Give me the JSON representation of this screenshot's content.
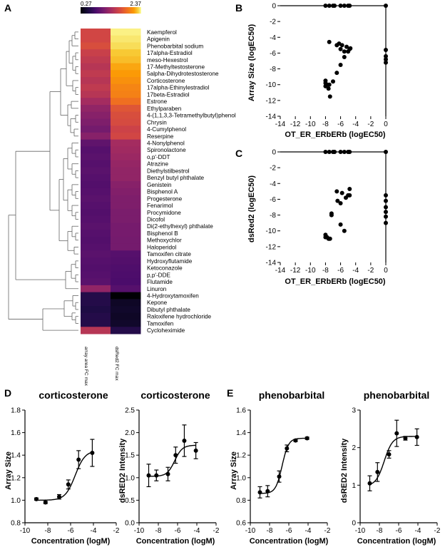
{
  "panel_letters": [
    "A",
    "B",
    "C",
    "D",
    "E"
  ],
  "colors": {
    "point": "#000000",
    "axis": "#000000",
    "dendro": "#666666"
  },
  "chart_data": [
    {
      "panel": "A",
      "type": "heatmap",
      "title": "",
      "colorbar": {
        "min_label": "0.27",
        "max_label": "2.37",
        "range": [
          0.27,
          2.37
        ],
        "colormap": "inferno"
      },
      "columns": [
        "array area FC max",
        "dsRed2 FC max"
      ],
      "rows": [
        "Kaempferol",
        "Apigenin",
        "Phenobarbital sodium",
        "17alpha-Estradiol",
        "meso-Hexestrol",
        "17-Methyltestosterone",
        "5alpha-Dihydrotestosterone",
        "Corticosterone",
        "17alpha-Ethinylestradiol",
        "17beta-Estradiol",
        "Estrone",
        "Ethylparaben",
        "4-(1,1,3,3-Tetramethylbutyl)phenol",
        "Chrysin",
        "4-Cumylphenol",
        "Reserpine",
        "4-Nonylphenol",
        "Spironolactone",
        "o,p'-DDT",
        "Atrazine",
        "Diethylstilbestrol",
        "Benzyl butyl phthalate",
        "Genistein",
        "Bisphenol A",
        "Progesterone",
        "Fenarimol",
        "Procymidone",
        "Dicofol",
        "Di(2-ethylhexyl) phthalate",
        "Bisphenol B",
        "Methoxychlor",
        "Haloperidol",
        "Tamoxifen citrate",
        "Hydroxyflutamide",
        "Ketoconazole",
        "p,p'-DDE",
        "Flutamide",
        "Linuron",
        "4-Hydroxytamoxifen",
        "Kepone",
        "Dibutyl phthalate",
        "Raloxifene hydrochloride",
        "Tamoxifen",
        "Cycloheximide"
      ],
      "values": [
        [
          1.45,
          2.3
        ],
        [
          1.45,
          2.25
        ],
        [
          1.5,
          2.2
        ],
        [
          1.4,
          2.1
        ],
        [
          1.35,
          2.05
        ],
        [
          1.3,
          1.95
        ],
        [
          1.35,
          1.9
        ],
        [
          1.3,
          1.85
        ],
        [
          1.35,
          1.8
        ],
        [
          1.3,
          1.78
        ],
        [
          1.2,
          1.7
        ],
        [
          1.1,
          1.55
        ],
        [
          1.05,
          1.5
        ],
        [
          1.0,
          1.48
        ],
        [
          0.95,
          1.42
        ],
        [
          1.05,
          1.45
        ],
        [
          0.85,
          1.2
        ],
        [
          0.8,
          1.18
        ],
        [
          0.82,
          1.15
        ],
        [
          0.8,
          1.12
        ],
        [
          0.82,
          1.1
        ],
        [
          0.8,
          1.1
        ],
        [
          0.78,
          1.05
        ],
        [
          0.8,
          1.02
        ],
        [
          0.82,
          1.0
        ],
        [
          0.8,
          1.0
        ],
        [
          0.78,
          0.98
        ],
        [
          0.8,
          0.98
        ],
        [
          0.82,
          0.96
        ],
        [
          0.8,
          0.96
        ],
        [
          0.78,
          0.95
        ],
        [
          0.8,
          0.95
        ],
        [
          0.82,
          0.8
        ],
        [
          0.8,
          0.78
        ],
        [
          0.78,
          0.76
        ],
        [
          0.8,
          0.75
        ],
        [
          0.82,
          0.74
        ],
        [
          1.1,
          0.8
        ],
        [
          0.55,
          0.27
        ],
        [
          0.55,
          0.4
        ],
        [
          0.52,
          0.42
        ],
        [
          0.55,
          0.4
        ],
        [
          0.55,
          0.42
        ],
        [
          1.3,
          0.55
        ]
      ]
    },
    {
      "panel": "B",
      "type": "scatter",
      "xlabel": "OT_ER_ERbERb (logEC50)",
      "ylabel": "Array Size (logEC50)",
      "xlim": [
        -14,
        0
      ],
      "ylim": [
        -14,
        0
      ],
      "xticks": [
        "-14",
        "-12",
        "-10",
        "-8",
        "-6",
        "-4",
        "-2",
        "0"
      ],
      "yticks": [
        "0",
        "-2",
        "-4",
        "-6",
        "-8",
        "-10",
        "-12",
        "-14"
      ],
      "x": [
        -8,
        -7.5,
        -7,
        -6.8,
        -6,
        -5.5,
        -5,
        -4.8,
        0,
        -8,
        -7.8,
        -7.5,
        -7,
        -6.5,
        -6,
        -5.5,
        -5,
        -4.8,
        -7.5,
        -6.5,
        -6,
        -5.5,
        -8,
        -7.6,
        -7.4,
        -8,
        -5.2,
        -4.7,
        -6.2,
        -5.8,
        0,
        0,
        0,
        0
      ],
      "y": [
        0,
        0,
        0,
        0,
        0,
        0,
        0,
        0,
        0,
        -9.8,
        -10,
        -10,
        -9.6,
        -8.5,
        -7.5,
        -6.5,
        -5.8,
        -5.5,
        -4.6,
        -5,
        -5.5,
        -5.8,
        -10.2,
        -10.5,
        -11.5,
        -9.5,
        -5.2,
        -5.4,
        -4.8,
        -5.0,
        -5.6,
        -6.4,
        -7.2,
        -6.8
      ]
    },
    {
      "panel": "C",
      "type": "scatter",
      "xlabel": "OT_ER_ERbERb (logEC50)",
      "ylabel": "dsRed2 (logEC50)",
      "xlim": [
        -14,
        0
      ],
      "ylim": [
        -14,
        0
      ],
      "xticks": [
        "-14",
        "-12",
        "-10",
        "-8",
        "-6",
        "-4",
        "-2",
        "0"
      ],
      "yticks": [
        "0",
        "-2",
        "-4",
        "-6",
        "-8",
        "-10",
        "-12",
        "-14"
      ],
      "x": [
        -8,
        -7.5,
        -7,
        -6.8,
        -6,
        -5.5,
        -5,
        -4.8,
        0,
        -8,
        -7.8,
        -7.5,
        -7.2,
        -6.5,
        -6,
        -5.5,
        -5,
        -4.8,
        -7.2,
        -6.4,
        -6,
        -5.3,
        -8,
        -7.6,
        -7.4,
        -5.8,
        -4.8,
        0,
        0,
        0,
        0,
        0,
        0
      ],
      "y": [
        0,
        0,
        0,
        0,
        0,
        0,
        0,
        0,
        0,
        -10.5,
        -10.8,
        -11,
        -8,
        -5,
        -9.2,
        -10,
        -5.5,
        -5.5,
        -7.8,
        -6.2,
        -6.5,
        -5.8,
        -10.8,
        -11,
        -11,
        -5.2,
        -4.7,
        -5.5,
        -6.2,
        -7,
        -7.6,
        -8.2,
        -9
      ]
    },
    {
      "panel": "D",
      "type": "line",
      "title": "corticosterone",
      "xlabel": "Concentration (logM)",
      "ylabel": "Array Size",
      "xlim": [
        -10,
        -2
      ],
      "ylim": [
        0.8,
        1.8
      ],
      "xticks": [
        "-10",
        "-8",
        "-6",
        "-4",
        "-2"
      ],
      "yticks": [
        "0.8",
        "1.0",
        "1.2",
        "1.4",
        "1.6",
        "1.8"
      ],
      "x": [
        -9,
        -8.2,
        -7,
        -6.2,
        -5.3,
        -4.1
      ],
      "values": [
        1.01,
        0.98,
        1.03,
        1.14,
        1.36,
        1.42
      ],
      "error": [
        0.01,
        0.01,
        0.02,
        0.04,
        0.08,
        0.12
      ],
      "fit": {
        "bottom": 1.0,
        "top": 1.44,
        "logec50": -5.6,
        "hill": 1.0
      }
    },
    {
      "panel": "D",
      "type": "line",
      "title": "corticosterone",
      "xlabel": "Concentration (logM)",
      "ylabel": "dsRED2 Intensity",
      "xlim": [
        -10,
        -2
      ],
      "ylim": [
        0.0,
        2.5
      ],
      "xticks": [
        "-10",
        "-8",
        "-6",
        "-4",
        "-2"
      ],
      "yticks": [
        "0.0",
        "0.5",
        "1.0",
        "1.5",
        "2.0",
        "2.5"
      ],
      "x": [
        -9,
        -8.2,
        -7,
        -6.2,
        -5.3,
        -4.1
      ],
      "values": [
        1.05,
        1.05,
        1.08,
        1.5,
        1.82,
        1.6
      ],
      "error": [
        0.25,
        0.12,
        0.15,
        0.18,
        0.35,
        0.18
      ],
      "fit": {
        "bottom": 1.03,
        "top": 1.72,
        "logec50": -6.3,
        "hill": 1.1
      }
    },
    {
      "panel": "E",
      "type": "line",
      "title": "phenobarbital",
      "xlabel": "Concentration (logM)",
      "ylabel": "Array Size",
      "xlim": [
        -10,
        -2
      ],
      "ylim": [
        0.6,
        1.6
      ],
      "xticks": [
        "-10",
        "-8",
        "-6",
        "-4",
        "-2"
      ],
      "yticks": [
        "0.6",
        "0.8",
        "1.0",
        "1.2",
        "1.4",
        "1.6"
      ],
      "x": [
        -9,
        -8.2,
        -7,
        -6.2,
        -5.3,
        -4.1
      ],
      "values": [
        0.87,
        0.88,
        1.01,
        1.26,
        1.33,
        1.35
      ],
      "error": [
        0.05,
        0.05,
        0.05,
        0.03,
        0.01,
        0.01
      ],
      "fit": {
        "bottom": 0.86,
        "top": 1.35,
        "logec50": -6.7,
        "hill": 1.3
      }
    },
    {
      "panel": "E",
      "type": "line",
      "title": "phenobarbital",
      "xlabel": "Concentration (logM)",
      "ylabel": "dsRED2 Intensity",
      "xlim": [
        -10,
        -2
      ],
      "ylim": [
        0,
        3
      ],
      "xticks": [
        "-10",
        "-8",
        "-6",
        "-4",
        "-2"
      ],
      "yticks": [
        "0",
        "1",
        "2",
        "3"
      ],
      "x": [
        -9,
        -8.2,
        -7,
        -6.2,
        -5.3,
        -4.1
      ],
      "values": [
        1.05,
        1.35,
        1.82,
        2.38,
        2.25,
        2.28
      ],
      "error": [
        0.2,
        0.25,
        0.1,
        0.35,
        0.05,
        0.22
      ],
      "fit": {
        "bottom": 0.98,
        "top": 2.3,
        "logec50": -7.5,
        "hill": 1.0
      }
    }
  ]
}
